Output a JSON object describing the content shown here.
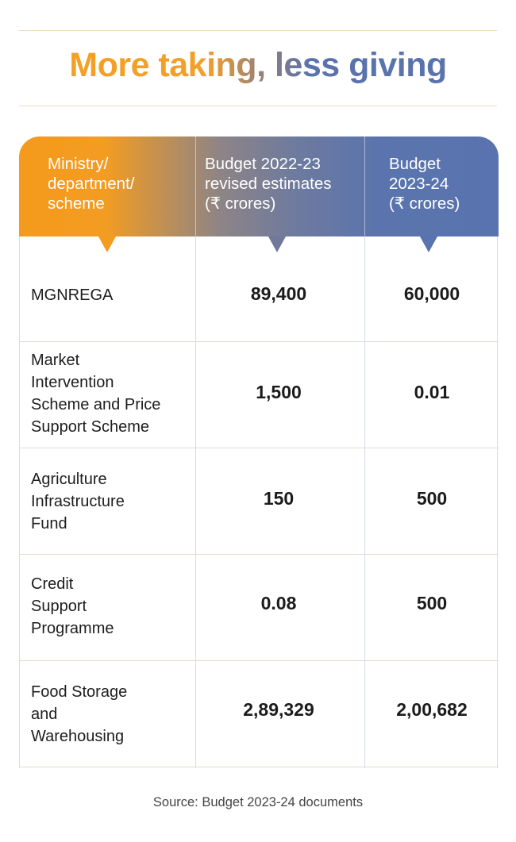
{
  "title_part1": "More taking,",
  "title_part2": "less giving",
  "chart_data": {
    "type": "table",
    "title": "More taking, less giving",
    "columns": [
      [
        "Ministry/",
        "department/",
        "scheme"
      ],
      [
        "Budget 2022-23",
        "revised estimates",
        "(₹ crores)"
      ],
      [
        "Budget",
        "2023-24",
        "(₹ crores)"
      ]
    ],
    "rows": [
      {
        "label": [
          "MGNREGA"
        ],
        "values": [
          "89,400",
          "60,000"
        ]
      },
      {
        "label": [
          "Market",
          "Intervention",
          "Scheme and Price",
          "Support Scheme"
        ],
        "values": [
          "1,500",
          "0.01"
        ]
      },
      {
        "label": [
          "Agriculture",
          "Infrastructure",
          "Fund"
        ],
        "values": [
          "150",
          "500"
        ]
      },
      {
        "label": [
          "Credit",
          "Support",
          "Programme"
        ],
        "values": [
          "0.08",
          "500"
        ]
      },
      {
        "label": [
          "Food Storage",
          "and",
          "Warehousing"
        ],
        "values": [
          "2,89,329",
          "2,00,682"
        ]
      }
    ]
  },
  "source": "Source: Budget 2023-24 documents"
}
